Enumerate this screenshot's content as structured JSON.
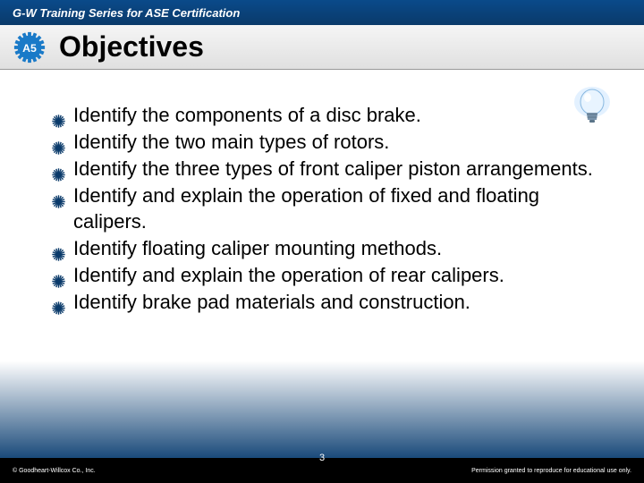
{
  "header": {
    "series_text": "G-W Training Series for ASE Certification"
  },
  "badge": {
    "label": "A5",
    "gear_color": "#1a7ac8",
    "text_color": "#ffffff"
  },
  "title": "Objectives",
  "bulb": {
    "glow_color": "#a8d8ff",
    "bulb_color": "#d8ecff",
    "base_color": "#5a7a9a"
  },
  "bullet_style": {
    "color": "#0a3a6a",
    "type": "starburst"
  },
  "objectives": [
    "Identify the components of a disc brake.",
    "Identify the two main types of rotors.",
    "Identify the three types of front caliper piston arrangements.",
    "Identify and explain the operation of fixed and floating calipers.",
    "Identify floating caliper mounting methods.",
    "Identify and explain the operation of rear calipers.",
    "Identify brake pad materials and construction."
  ],
  "footer": {
    "copyright": "© Goodheart-Willcox Co., Inc.",
    "page_number": "3",
    "permission": "Permission granted to reproduce for educational use only."
  },
  "colors": {
    "header_bg_top": "#0a4a8a",
    "header_bg_bottom": "#0a3a6a",
    "title_bg_top": "#f5f5f5",
    "title_bg_bottom": "#e0e0e0",
    "content_bg": "#ffffff",
    "content_fade": "#1a4a7a",
    "body_bg": "#000000"
  },
  "typography": {
    "header_fontsize": 13,
    "title_fontsize": 32,
    "body_fontsize": 22,
    "footer_fontsize": 7
  }
}
